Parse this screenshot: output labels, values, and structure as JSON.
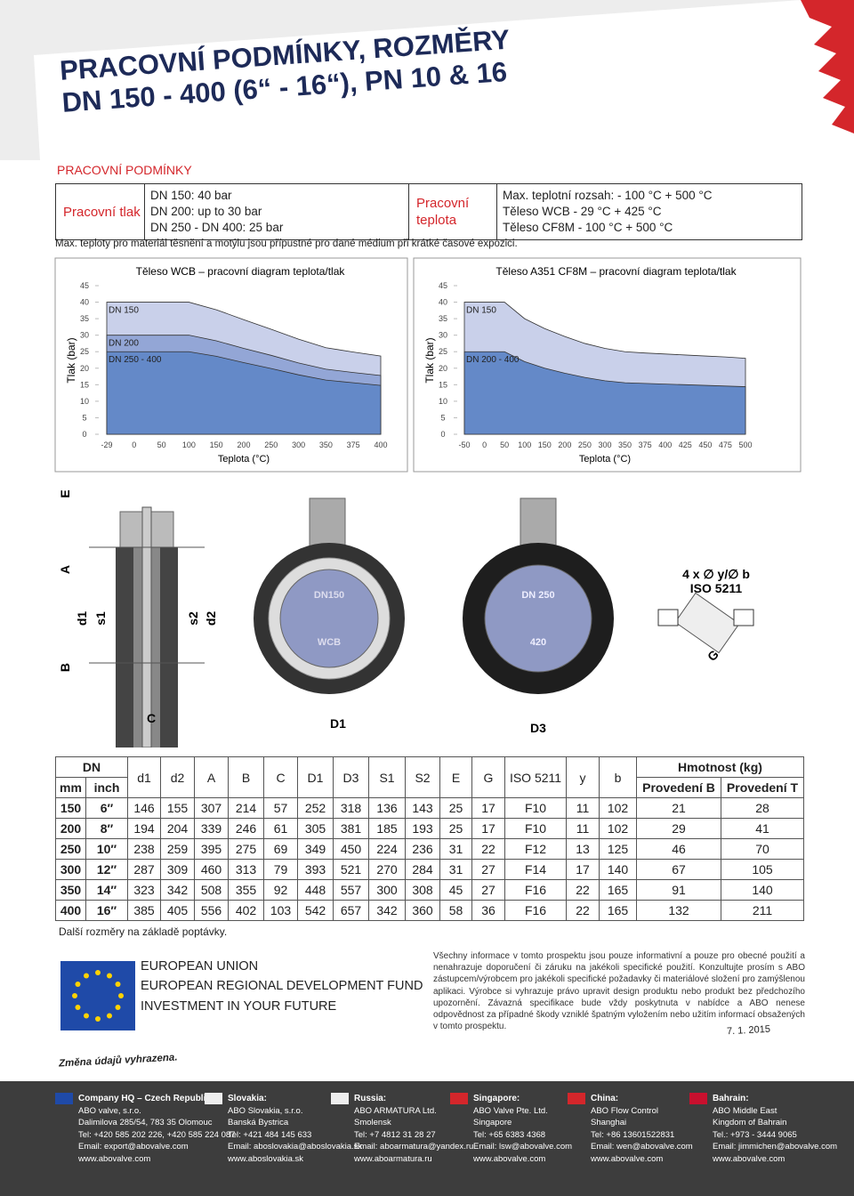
{
  "header": {
    "title_lines": [
      "PRACOVNÍ PODMÍNKY, ROZMĚRY",
      "DN 150 - 400 (6“ - 16“), PN 10 & 16"
    ]
  },
  "section_title": "PRACOVNÍ PODMÍNKY",
  "conditions": {
    "pressure_label": "Pracovní tlak",
    "pressure_values": [
      "DN 150: 40 bar",
      "DN 200: up to 30 bar",
      "DN 250 - DN 400: 25 bar"
    ],
    "temperature_label": "Pracovní teplota",
    "temperature_values": [
      "Max. teplotní rozsah: - 100 °C + 500 °C",
      "Těleso WCB - 29 °C + 425 °C",
      "Těleso CF8M - 100 °C + 500 °C"
    ],
    "note": "Max. teploty pro materiál těsnění a motýlu jsou přípustné pro dané médium při krátké časové expozici."
  },
  "charts": [
    {
      "type": "area",
      "title": "Těleso WCB – pracovní diagram teplota/tlak",
      "y_label": "Tlak (bar)",
      "x_label": "Teplota (°C)",
      "categories": [
        "-29",
        "0",
        "50",
        "100",
        "150",
        "200",
        "250",
        "300",
        "350",
        "375",
        "400"
      ],
      "ylim": [
        0,
        45
      ],
      "yticks": [
        0,
        5,
        10,
        15,
        20,
        25,
        30,
        35,
        40,
        45
      ],
      "series": [
        {
          "name": "DN 150",
          "color": "#c9d0ea",
          "values": [
            40,
            40,
            40,
            40,
            37.7,
            34.7,
            31.8,
            28.8,
            26.2,
            24.9,
            23.7
          ]
        },
        {
          "name": "DN 200",
          "color": "#93a6d6",
          "values": [
            30,
            30,
            30,
            30,
            28.3,
            26,
            23.9,
            21.6,
            19.7,
            18.7,
            17.8
          ]
        },
        {
          "name": "DN 250 - 400",
          "color": "#6489c8",
          "values": [
            25,
            25,
            25,
            25,
            23.6,
            21.7,
            19.9,
            18,
            16.4,
            15.6,
            14.8
          ]
        }
      ]
    },
    {
      "type": "area",
      "title": "Těleso A351 CF8M – pracovní diagram teplota/tlak",
      "y_label": "Tlak (bar)",
      "x_label": "Teplota (°C)",
      "categories": [
        "-50",
        "0",
        "50",
        "100",
        "150",
        "200",
        "250",
        "300",
        "350",
        "375",
        "400",
        "425",
        "450",
        "475",
        "500"
      ],
      "ylim": [
        0,
        45
      ],
      "yticks": [
        0,
        5,
        10,
        15,
        20,
        25,
        30,
        35,
        40,
        45
      ],
      "series": [
        {
          "name": "DN 150",
          "color": "#c9d0ea",
          "values": [
            40,
            40,
            40,
            35,
            32,
            29.6,
            27.5,
            26,
            25,
            24.6,
            24.3,
            24,
            23.7,
            23.4,
            23
          ]
        },
        {
          "name": "DN 200 - 400",
          "color": "#6489c8",
          "values": [
            25,
            25,
            25,
            22,
            20,
            18.5,
            17.2,
            16.2,
            15.6,
            15.4,
            15.2,
            15,
            14.8,
            14.6,
            14.4
          ]
        }
      ]
    }
  ],
  "drawing": {
    "E": "E",
    "A": "A",
    "B": "B",
    "d1": "d1",
    "s1": "s1",
    "s2": "s2",
    "d2": "d2",
    "C": "C",
    "D1": "D1",
    "D3": "D3",
    "wcb_dn": "DN150",
    "wcb_mat": "WCB",
    "t_dn": "DN 250",
    "t_num": "420",
    "iso_top": "4 x ∅ y/∅ b",
    "iso": "ISO 5211",
    "G": "G"
  },
  "table": {
    "header_dn": "DN",
    "header_mm": "mm",
    "header_inch": "inch",
    "columns": [
      "d1",
      "d2",
      "A",
      "B",
      "C",
      "D1",
      "D3",
      "S1",
      "S2",
      "E",
      "G",
      "ISO 5211",
      "y",
      "b"
    ],
    "weight": "Hmotnost (kg)",
    "weight_cols": [
      "Provedení B",
      "Provedení T"
    ],
    "rows": [
      [
        150,
        "6″",
        146,
        155,
        307,
        214,
        57,
        252,
        318,
        136,
        143,
        25,
        17,
        "F10",
        11,
        102,
        21,
        28
      ],
      [
        200,
        "8″",
        194,
        204,
        339,
        246,
        61,
        305,
        381,
        185,
        193,
        25,
        17,
        "F10",
        11,
        102,
        29,
        41
      ],
      [
        250,
        "10″",
        238,
        259,
        395,
        275,
        69,
        349,
        450,
        224,
        236,
        31,
        22,
        "F12",
        13,
        125,
        46,
        70
      ],
      [
        300,
        "12″",
        287,
        309,
        460,
        313,
        79,
        393,
        521,
        270,
        284,
        31,
        27,
        "F14",
        17,
        140,
        67,
        105
      ],
      [
        350,
        "14″",
        323,
        342,
        508,
        355,
        92,
        448,
        557,
        300,
        308,
        45,
        27,
        "F16",
        22,
        165,
        91,
        140
      ],
      [
        400,
        "16″",
        385,
        405,
        556,
        402,
        103,
        542,
        657,
        342,
        360,
        58,
        36,
        "F16",
        22,
        165,
        132,
        211
      ]
    ],
    "footnote": "Další rozměry na základě poptávky."
  },
  "eu": [
    "EUROPEAN UNION",
    "EUROPEAN REGIONAL DEVELOPMENT FUND",
    "INVESTMENT IN YOUR FUTURE"
  ],
  "disclaimer": "Všechny informace v tomto prospektu jsou pouze informativní a pouze pro obecné použití a nenahrazuje doporučení či záruku na jakékoli specifické použití. Konzultujte prosím s ABO zástupcem/výrobcem pro jakékoli specifické požadavky či materiálové složení pro zamýšlenou aplikaci. Výrobce si vyhrazuje právo upravit design produktu nebo produkt bez předchozího upozornění. Závazná specifikace bude vždy poskytnuta v nabídce a ABO nenese odpovědnost za případné škody vzniklé špatným vyložením nebo užitím informací obsažených v tomto prospektu.",
  "date": "7. 1. 2015",
  "change_note": "Změna údajů vyhrazena.",
  "offices": [
    {
      "title": "Company HQ – Czech Republic:",
      "lines": [
        "ABO valve, s.r.o.",
        "Dalimilova 285/54, 783 35 Olomouc",
        "Tel: +420 585 202 226, +420 585 224 087",
        "Email: export@abovalve.com",
        "www.abovalve.com"
      ]
    },
    {
      "title": "Slovakia:",
      "lines": [
        "ABO Slovakia, s.r.o.",
        "Banská Bystrica",
        "Tel: +421 484 145 633",
        "Email: aboslovakia@aboslovakia.sk",
        "www.aboslovakia.sk"
      ]
    },
    {
      "title": "Russia:",
      "lines": [
        "ABO ARMATURA Ltd.",
        "Smolensk",
        "Tel: +7 4812 31 28 27",
        "Email: aboarmatura@yandex.ru",
        "www.aboarmatura.ru"
      ]
    },
    {
      "title": "Singapore:",
      "lines": [
        "ABO Valve Pte. Ltd.",
        "Singapore",
        "Tel: +65 6383 4368",
        "Email: lsw@abovalve.com",
        "www.abovalve.com"
      ]
    },
    {
      "title": "China:",
      "lines": [
        "ABO Flow Control",
        "Shanghai",
        "Tel: +86 13601522831",
        "Email: wen@abovalve.com",
        "www.abovalve.com"
      ]
    },
    {
      "title": "Bahrain:",
      "lines": [
        "ABO Middle East",
        "Kingdom of Bahrain",
        "Tel.: +973 - 3444 9065",
        "Email: jimmichen@abovalve.com",
        "www.abovalve.com"
      ]
    }
  ]
}
